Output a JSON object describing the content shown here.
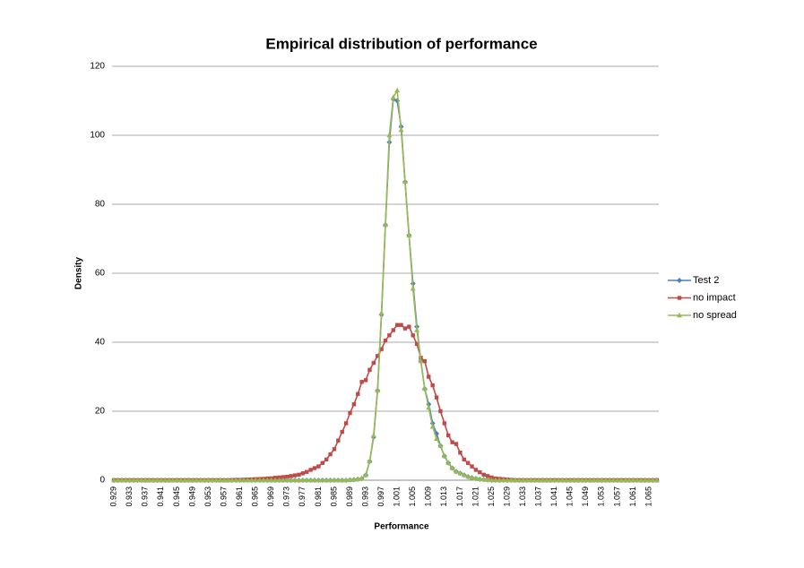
{
  "chart_data": {
    "type": "line",
    "title": "Empirical distribution of performance",
    "x_label": "Performance",
    "y_label": "Density",
    "categories": [
      "0.929",
      null,
      null,
      null,
      "0.933",
      null,
      null,
      null,
      "0.937",
      null,
      null,
      null,
      "0.941",
      null,
      null,
      null,
      "0.945",
      null,
      null,
      null,
      "0.949",
      null,
      null,
      null,
      "0.953",
      null,
      null,
      null,
      "0.957",
      null,
      null,
      null,
      "0.961",
      null,
      null,
      null,
      "0.965",
      null,
      null,
      null,
      "0.969",
      null,
      null,
      null,
      "0.973",
      null,
      null,
      null,
      "0.977",
      null,
      null,
      null,
      "0.981",
      null,
      null,
      null,
      "0.985",
      null,
      null,
      null,
      "0.989",
      null,
      null,
      null,
      "0.993",
      null,
      null,
      null,
      "0.997",
      null,
      null,
      null,
      "1.001",
      null,
      null,
      null,
      "1.005",
      null,
      null,
      null,
      "1.009",
      null,
      null,
      null,
      "1.013",
      null,
      null,
      null,
      "1.017",
      null,
      null,
      null,
      "1.021",
      null,
      null,
      null,
      "1.025",
      null,
      null,
      null,
      "1.029",
      null,
      null,
      null,
      "1.033",
      null,
      null,
      null,
      "1.037",
      null,
      null,
      null,
      "1.041",
      null,
      null,
      null,
      "1.045",
      null,
      null,
      null,
      "1.049",
      null,
      null,
      null,
      "1.053",
      null,
      null,
      null,
      "1.057",
      null,
      null,
      null,
      "1.061",
      null,
      null,
      null,
      "1.065",
      null,
      null
    ],
    "series": [
      {
        "name": "Test 2",
        "color": "#4a7ebb",
        "marker": "diamond",
        "values": [
          0,
          0,
          0,
          0,
          0,
          0,
          0,
          0,
          0,
          0,
          0,
          0,
          0,
          0,
          0,
          0,
          0,
          0,
          0,
          0,
          0,
          0,
          0,
          0,
          0,
          0,
          0,
          0,
          0,
          0,
          0,
          0,
          0,
          0,
          0,
          0,
          0,
          0,
          0,
          0,
          0,
          0,
          0,
          0,
          0,
          0,
          0,
          0,
          0,
          0,
          0,
          0,
          0,
          0,
          0,
          0,
          0,
          0,
          0,
          0,
          0.1,
          0.15,
          0.3,
          0.5,
          1.5,
          5.5,
          12.5,
          26,
          48,
          74,
          98,
          110.5,
          110,
          102.5,
          86.5,
          71,
          57,
          44.5,
          34.5,
          26.5,
          22,
          16.5,
          13.5,
          10,
          7,
          5,
          3.5,
          2.5,
          2,
          1.5,
          1,
          0.7,
          0.5,
          0.3,
          0.2,
          0.1,
          0,
          0,
          0,
          0,
          0,
          0,
          0,
          0,
          0,
          0,
          0,
          0,
          0,
          0,
          0,
          0,
          0,
          0,
          0,
          0,
          0,
          0,
          0,
          0,
          0,
          0,
          0,
          0,
          0,
          0,
          0,
          0,
          0,
          0,
          0,
          0,
          0,
          0,
          0,
          0,
          0,
          0,
          0
        ]
      },
      {
        "name": "no impact",
        "color": "#be4b48",
        "marker": "square",
        "values": [
          0,
          0,
          0,
          0,
          0,
          0,
          0,
          0,
          0,
          0,
          0,
          0,
          0,
          0,
          0,
          0,
          0,
          0,
          0,
          0,
          0,
          0,
          0,
          0,
          0,
          0,
          0,
          0,
          0,
          0,
          0.05,
          0.1,
          0.1,
          0.15,
          0.2,
          0.25,
          0.3,
          0.35,
          0.4,
          0.5,
          0.55,
          0.7,
          0.8,
          0.9,
          1,
          1.2,
          1.4,
          1.6,
          2,
          2.4,
          3,
          3.5,
          4,
          5,
          6,
          7.5,
          9,
          11.5,
          14,
          16.5,
          19.5,
          22,
          25,
          28.5,
          29,
          32,
          34,
          36,
          38,
          40.5,
          42,
          43.5,
          45,
          45,
          44,
          44.5,
          42,
          39.5,
          35.5,
          34.5,
          30,
          27.5,
          24,
          20,
          16.5,
          13,
          11,
          10.5,
          8,
          6,
          5,
          4,
          3,
          2.3,
          1.6,
          1.2,
          0.8,
          0.5,
          0.4,
          0.3,
          0.2,
          0.1,
          0,
          0,
          0,
          0,
          0,
          0,
          0,
          0,
          0,
          0,
          0,
          0,
          0,
          0,
          0,
          0,
          0,
          0,
          0,
          0,
          0,
          0,
          0,
          0,
          0,
          0,
          0,
          0,
          0,
          0,
          0,
          0,
          0,
          0,
          0,
          0,
          0
        ]
      },
      {
        "name": "no spread",
        "color": "#98b954",
        "marker": "triangle",
        "values": [
          0,
          0,
          0,
          0,
          0,
          0,
          0,
          0,
          0,
          0,
          0,
          0,
          0,
          0,
          0,
          0,
          0,
          0,
          0,
          0,
          0,
          0,
          0,
          0,
          0,
          0,
          0,
          0,
          0,
          0,
          0,
          0,
          0,
          0,
          0,
          0,
          0,
          0,
          0,
          0,
          0,
          0,
          0,
          0,
          0,
          0,
          0,
          0,
          0,
          0,
          0,
          0,
          0,
          0,
          0,
          0,
          0,
          0,
          0,
          0,
          0.1,
          0.15,
          0.3,
          0.5,
          1.5,
          5.5,
          13,
          26,
          48.5,
          74,
          100,
          111,
          113,
          101.5,
          86.5,
          71,
          55.5,
          43.5,
          34.5,
          26.5,
          21,
          15.5,
          12,
          10,
          7,
          5,
          3.5,
          2.5,
          2,
          1.5,
          1,
          0.7,
          0.5,
          0.3,
          0.2,
          0.1,
          0,
          0,
          0,
          0,
          0,
          0,
          0,
          0,
          0,
          0,
          0,
          0,
          0,
          0,
          0,
          0,
          0,
          0,
          0,
          0,
          0,
          0,
          0,
          0,
          0,
          0,
          0,
          0,
          0,
          0,
          0,
          0,
          0,
          0,
          0,
          0,
          0,
          0,
          0,
          0,
          0,
          0,
          0
        ]
      }
    ],
    "ylim": [
      0,
      120
    ],
    "yticks": [
      0,
      20,
      40,
      60,
      80,
      100,
      120
    ],
    "grid": true,
    "legend": "right"
  }
}
